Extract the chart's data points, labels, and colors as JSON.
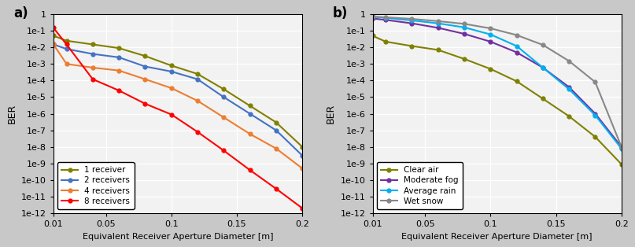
{
  "panel_a": {
    "label": "a)",
    "xlabel": "Equivalent Receiver Aperture Diameter [m]",
    "ylabel": "BER",
    "xlim": [
      0.01,
      0.2
    ],
    "ylim_log": [
      -12,
      0
    ],
    "series": [
      {
        "label": "1 receiver",
        "color": "#808000",
        "x": [
          0.01,
          0.02,
          0.04,
          0.06,
          0.08,
          0.1,
          0.12,
          0.14,
          0.16,
          0.18,
          0.2
        ],
        "y": [
          0.05,
          0.025,
          0.015,
          0.009,
          0.003,
          0.0008,
          0.00025,
          3e-05,
          3e-06,
          3e-07,
          1e-08
        ]
      },
      {
        "label": "2 receivers",
        "color": "#4472C4",
        "x": [
          0.01,
          0.02,
          0.04,
          0.06,
          0.08,
          0.1,
          0.12,
          0.14,
          0.16,
          0.18,
          0.2
        ],
        "y": [
          0.015,
          0.008,
          0.004,
          0.0025,
          0.0007,
          0.00035,
          0.00012,
          1e-05,
          1e-06,
          1e-07,
          3e-09
        ]
      },
      {
        "label": "4 receivers",
        "color": "#ED7D31",
        "x": [
          0.01,
          0.02,
          0.04,
          0.06,
          0.08,
          0.1,
          0.12,
          0.14,
          0.16,
          0.18,
          0.2
        ],
        "y": [
          0.015,
          0.001,
          0.0006,
          0.0004,
          0.00012,
          3.5e-05,
          6e-06,
          6e-07,
          6e-08,
          8e-09,
          5e-10
        ]
      },
      {
        "label": "8 receivers",
        "color": "#FF0000",
        "x": [
          0.01,
          0.02,
          0.04,
          0.06,
          0.08,
          0.1,
          0.12,
          0.14,
          0.16,
          0.18,
          0.2
        ],
        "y": [
          0.15,
          0.015,
          0.00012,
          2.5e-05,
          4e-06,
          9e-07,
          8e-08,
          6e-09,
          4e-10,
          3e-11,
          2e-12
        ]
      }
    ]
  },
  "panel_b": {
    "label": "b)",
    "xlabel": "Equivalent Receiver Aperture Diameter [m]",
    "ylabel": "BER",
    "xlim": [
      0.01,
      0.2
    ],
    "ylim_log": [
      -12,
      0
    ],
    "series": [
      {
        "label": "Clear air",
        "color": "#808000",
        "x": [
          0.01,
          0.02,
          0.04,
          0.06,
          0.08,
          0.1,
          0.12,
          0.14,
          0.16,
          0.18,
          0.2
        ],
        "y": [
          0.05,
          0.022,
          0.012,
          0.007,
          0.002,
          0.0005,
          9e-05,
          8e-06,
          7e-07,
          4e-08,
          9e-10
        ]
      },
      {
        "label": "Moderate fog",
        "color": "#7030A0",
        "x": [
          0.01,
          0.02,
          0.04,
          0.06,
          0.08,
          0.1,
          0.12,
          0.14,
          0.16,
          0.18,
          0.2
        ],
        "y": [
          0.55,
          0.45,
          0.28,
          0.15,
          0.065,
          0.022,
          0.005,
          0.0006,
          4e-05,
          1e-06,
          1e-08
        ]
      },
      {
        "label": "Average rain",
        "color": "#00B0F0",
        "x": [
          0.01,
          0.02,
          0.04,
          0.06,
          0.08,
          0.1,
          0.12,
          0.14,
          0.16,
          0.18,
          0.2
        ],
        "y": [
          0.7,
          0.6,
          0.42,
          0.28,
          0.16,
          0.06,
          0.012,
          0.0006,
          3e-05,
          8e-07,
          8e-09
        ]
      },
      {
        "label": "Wet snow",
        "color": "#888888",
        "x": [
          0.01,
          0.02,
          0.04,
          0.06,
          0.08,
          0.1,
          0.12,
          0.14,
          0.16,
          0.18,
          0.2
        ],
        "y": [
          0.72,
          0.65,
          0.52,
          0.38,
          0.26,
          0.14,
          0.055,
          0.014,
          0.0015,
          8e-05,
          1e-08
        ]
      }
    ]
  },
  "bg_color": "#f2f2f2",
  "grid_color": "white",
  "marker": "o",
  "markersize": 3.5,
  "linewidth": 1.5,
  "outer_bg": "#c8c8c8"
}
